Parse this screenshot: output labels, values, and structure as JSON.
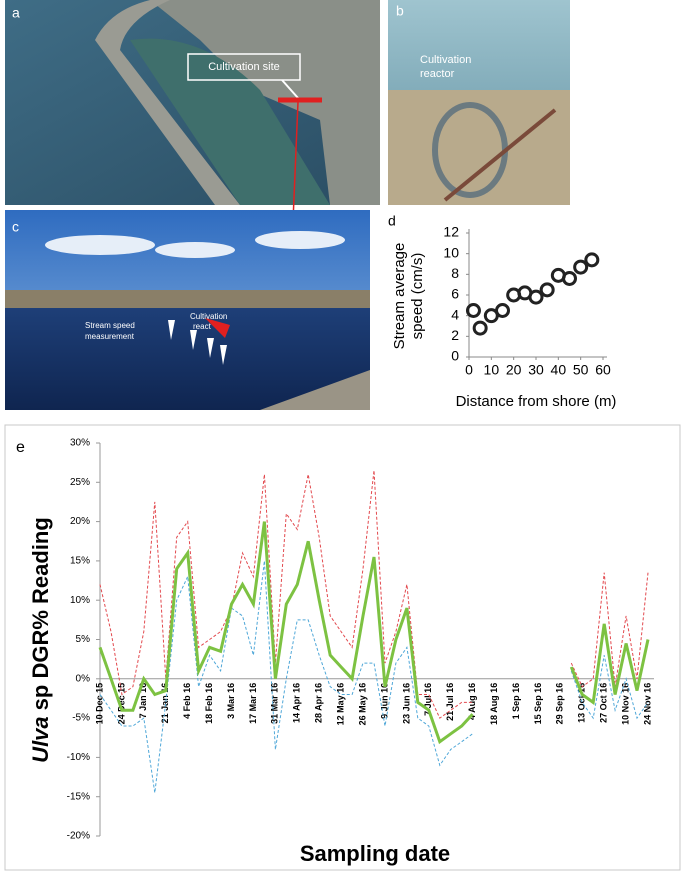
{
  "panels": {
    "a": {
      "label": "a",
      "annotation": "Cultivation site"
    },
    "b": {
      "label": "b",
      "annotation": [
        "Cultivation",
        "reactor"
      ]
    },
    "c": {
      "label": "c",
      "annotations": [
        "Stream speed",
        "measurement",
        "Cultivation",
        "react"
      ]
    }
  },
  "chart_data": [
    {
      "type": "scatter",
      "panel": "d",
      "xlabel": "Distance from shore (m)",
      "ylabel": [
        "Stream average",
        "speed (cm/s)"
      ],
      "x": [
        2,
        5,
        10,
        15,
        20,
        25,
        30,
        35,
        40,
        45,
        50,
        55
      ],
      "values": [
        4.5,
        2.8,
        4,
        4.5,
        6,
        6.2,
        5.8,
        6.5,
        7.9,
        7.6,
        8.7,
        9.4
      ],
      "color": "#222222",
      "xlim": [
        0,
        60
      ],
      "xticks": [
        0,
        10,
        20,
        30,
        40,
        50,
        60
      ],
      "ylim": [
        0,
        12
      ],
      "yticks": [
        0,
        2,
        4,
        6,
        8,
        10,
        12
      ],
      "grid": false
    },
    {
      "type": "line",
      "panel": "e",
      "xlabel": "Sampling date",
      "ylabel": {
        "italic": "Ulva",
        "rest": "sp DGR% Reading"
      },
      "categories": [
        "10 Dec 15",
        null,
        "24 Dec 15",
        null,
        "7 Jan 16",
        null,
        "21 Jan 16",
        null,
        "4 Feb 16",
        null,
        "18 Feb 16",
        null,
        "3 Mar 16",
        null,
        "17 Mar 16",
        null,
        "31 Mar 16",
        null,
        "14 Apr 16",
        null,
        "28 Apr 16",
        null,
        "12 May 16",
        null,
        "26 May 16",
        null,
        "9 Jun 16",
        null,
        "23 Jun 16",
        null,
        "7 Jul 16",
        null,
        "21 Jul 16",
        null,
        "4 Aug 16",
        null,
        "18 Aug 16",
        null,
        "1 Sep 16",
        null,
        "15 Sep 16",
        null,
        "29 Sep 16",
        null,
        "13 Oct 16",
        null,
        "27 Oct 16",
        null,
        "10 Nov 16",
        null,
        "24 Nov 16"
      ],
      "series": [
        {
          "color": "#e2484d",
          "style": "dashed",
          "width": 1,
          "values": [
            12,
            6,
            -2,
            -1,
            6,
            22.5,
            0,
            18,
            20,
            4,
            5,
            6,
            9,
            16,
            13,
            26,
            2,
            21,
            19,
            26,
            18,
            8,
            6,
            4,
            14,
            26.5,
            2,
            6,
            12,
            -2,
            -2,
            -5,
            -4,
            -3,
            -3,
            null,
            null,
            null,
            null,
            null,
            null,
            null,
            null,
            2,
            -1,
            0,
            13.5,
            -1,
            8,
            0,
            13.5
          ]
        },
        {
          "color": "#4fa7d8",
          "style": "dashed",
          "width": 1,
          "values": [
            -2,
            -4,
            -6,
            -6,
            -5,
            -14.5,
            -3,
            10,
            13,
            -1,
            3,
            1,
            9,
            8,
            3,
            15,
            -9,
            0,
            7.5,
            7.5,
            3,
            -1,
            -2,
            -2,
            2,
            2,
            -6,
            2,
            4,
            -5,
            -6,
            -11,
            -9,
            -8,
            -7,
            null,
            null,
            null,
            null,
            null,
            null,
            null,
            null,
            1,
            -3,
            -5,
            3,
            -4,
            0,
            -5,
            -3
          ]
        },
        {
          "color": "#7dc242",
          "style": "solid",
          "width": 3,
          "values": [
            4,
            0,
            -4,
            -4,
            0,
            -2,
            -1.5,
            14,
            16,
            1,
            4,
            3.5,
            9.5,
            12,
            9.5,
            20,
            0,
            9.5,
            12,
            17.5,
            10,
            3,
            1.5,
            0,
            8,
            15.5,
            -1,
            5,
            9,
            -3,
            -4,
            -8,
            -7,
            -6,
            -4.5,
            null,
            null,
            null,
            null,
            null,
            null,
            null,
            null,
            1.5,
            -2,
            -3,
            7,
            -2,
            4.5,
            -1.5,
            5
          ]
        }
      ],
      "ylim": [
        -20,
        30
      ],
      "yticks": [
        {
          "value": -20,
          "label": "-20%"
        },
        {
          "value": -15,
          "label": "-15%"
        },
        {
          "value": -10,
          "label": "-10%"
        },
        {
          "value": -5,
          "label": "-5%"
        },
        {
          "value": 0,
          "label": "0%"
        },
        {
          "value": 5,
          "label": "5%"
        },
        {
          "value": 10,
          "label": "10%"
        },
        {
          "value": 15,
          "label": "15%"
        },
        {
          "value": 20,
          "label": "20%"
        },
        {
          "value": 25,
          "label": "25%"
        },
        {
          "value": 30,
          "label": "30%"
        }
      ],
      "grid": false
    }
  ]
}
